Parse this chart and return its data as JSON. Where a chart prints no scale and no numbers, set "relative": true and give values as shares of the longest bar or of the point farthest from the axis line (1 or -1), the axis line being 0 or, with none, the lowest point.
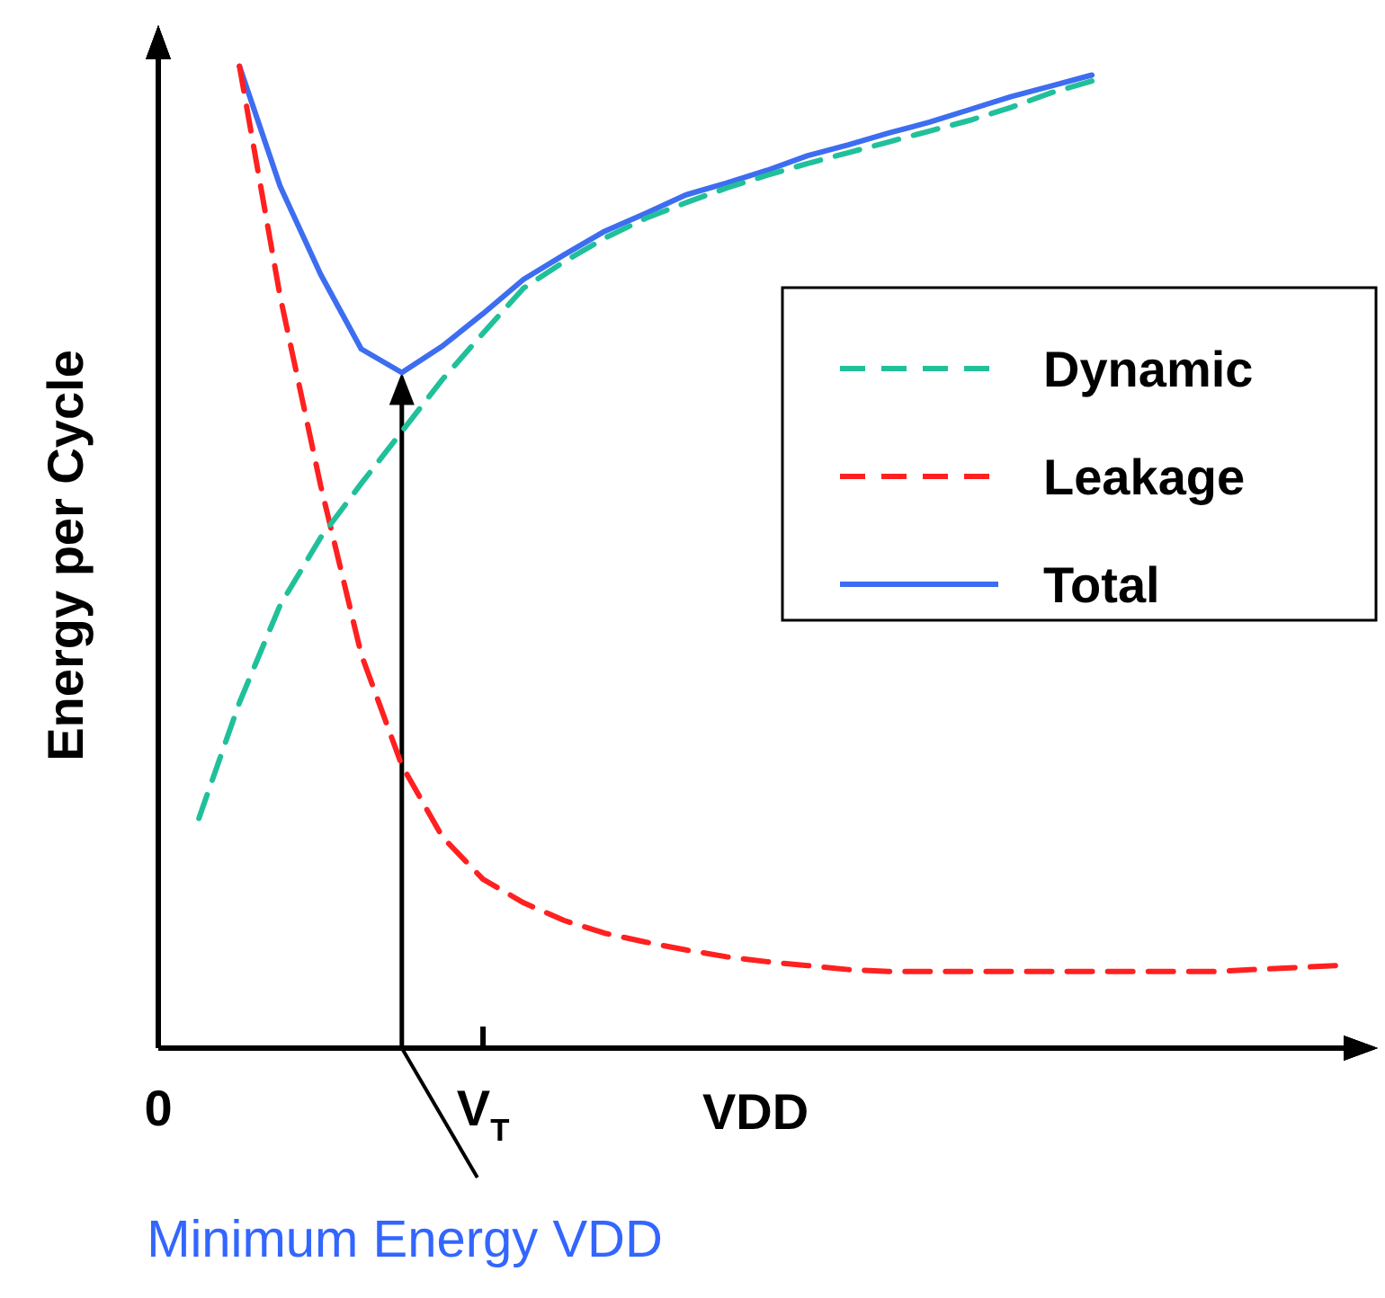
{
  "chart_data": {
    "type": "line",
    "relative": true,
    "ylabel": "Energy per Cycle",
    "xlabel": "VDD",
    "legend": "right",
    "marker": "none",
    "categories": [
      "0",
      null,
      null,
      null,
      null,
      null,
      null,
      null,
      "V$_{T}$",
      null,
      null,
      null,
      null,
      null,
      null,
      null,
      null,
      null,
      null,
      null,
      null,
      null,
      null,
      null,
      null,
      null,
      null,
      null,
      null,
      null,
      null
    ],
    "annotations": [
      "Minimum Energy VDD"
    ],
    "series": [
      {
        "name": "Dynamic",
        "color": "#20c09a",
        "line_style": "dashed",
        "values": [
          null,
          0.234,
          0.352,
          0.451,
          0.52,
          0.575,
          0.628,
          0.681,
          0.728,
          0.774,
          0.801,
          0.825,
          0.845,
          0.861,
          0.876,
          0.889,
          0.901,
          0.912,
          0.923,
          0.934,
          0.945,
          0.958,
          0.973,
          0.985,
          null,
          null,
          null,
          null,
          null,
          null,
          null
        ]
      },
      {
        "name": "Leakage",
        "color": "#ff2020",
        "line_style": "dashed",
        "values": [
          null,
          null,
          1,
          0.766,
          0.573,
          0.401,
          0.288,
          0.215,
          0.172,
          0.148,
          0.13,
          0.117,
          0.108,
          0.1,
          0.093,
          0.088,
          0.084,
          0.08,
          0.078,
          0.078,
          0.078,
          0.078,
          0.078,
          0.078,
          0.078,
          0.078,
          0.078,
          0.08,
          0.082,
          0.084,
          null
        ]
      },
      {
        "name": "Total",
        "color": "#3d6df0",
        "line_style": "solid",
        "values": [
          null,
          null,
          1,
          0.878,
          0.788,
          0.712,
          0.688,
          0.715,
          0.748,
          0.783,
          0.808,
          0.832,
          0.85,
          0.869,
          0.881,
          0.894,
          0.909,
          0.92,
          0.932,
          0.943,
          0.956,
          0.969,
          0.98,
          0.991,
          null,
          null,
          null,
          null,
          null,
          null,
          null
        ]
      }
    ]
  }
}
